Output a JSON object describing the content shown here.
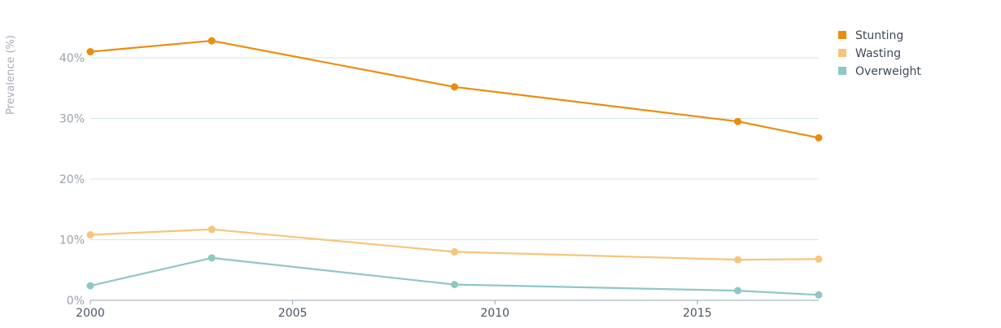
{
  "chart_data": {
    "type": "line",
    "title": "",
    "ylabel": "Prevalence (%)",
    "xlabel": "",
    "ylim": [
      0,
      45
    ],
    "xlim": [
      2000,
      2018
    ],
    "yticks": [
      0,
      10,
      20,
      30,
      40
    ],
    "ytick_labels": [
      "0%",
      "10%",
      "20%",
      "30%",
      "40%"
    ],
    "xticks": [
      2000,
      2005,
      2010,
      2015
    ],
    "xtick_labels": [
      "2000",
      "2005",
      "2010",
      "2015"
    ],
    "grid": true,
    "legend_position": "top-right",
    "series": [
      {
        "name": "Stunting",
        "color": "#ec8c0c",
        "x": [
          2000,
          2003,
          2009,
          2016,
          2018
        ],
        "y": [
          41.0,
          42.8,
          35.2,
          29.5,
          26.8
        ]
      },
      {
        "name": "Wasting",
        "color": "#f8c47a",
        "x": [
          2000,
          2003,
          2009,
          2016,
          2018
        ],
        "y": [
          10.8,
          11.7,
          8.0,
          6.7,
          6.8
        ]
      },
      {
        "name": "Overweight",
        "color": "#8ec8c4",
        "x": [
          2000,
          2003,
          2009,
          2016,
          2018
        ],
        "y": [
          2.4,
          7.0,
          2.6,
          1.6,
          0.9
        ]
      }
    ]
  }
}
